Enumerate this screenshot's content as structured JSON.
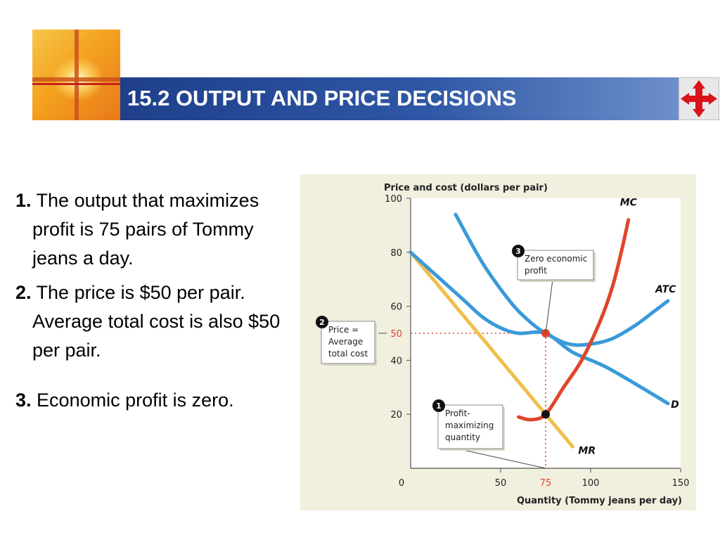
{
  "slide": {
    "title": "15.2 OUTPUT AND PRICE DECISIONS",
    "points": [
      {
        "num": "1.",
        "text": "The output that maximizes profit is 75 pairs of Tommy jeans a day."
      },
      {
        "num": "2.",
        "text": "The price is $50 per pair. Average total cost is also $50 per pair."
      },
      {
        "num": "3.",
        "text": " Economic profit is zero."
      }
    ]
  },
  "chart_data": {
    "type": "line",
    "ylabel": "Price and cost (dollars per pair)",
    "xlabel": "Quantity (Tommy jeans per day)",
    "xlim": [
      0,
      150
    ],
    "ylim": [
      0,
      100
    ],
    "x_ticks": [
      {
        "value": 0,
        "label": "0"
      },
      {
        "value": 50,
        "label": "50"
      },
      {
        "value": 75,
        "label": "75",
        "highlight": true
      },
      {
        "value": 100,
        "label": "100"
      },
      {
        "value": 150,
        "label": "150"
      }
    ],
    "y_ticks": [
      {
        "value": 20,
        "label": "20"
      },
      {
        "value": 40,
        "label": "40"
      },
      {
        "value": 50,
        "label": "50",
        "highlight": true
      },
      {
        "value": 60,
        "label": "60"
      },
      {
        "value": 80,
        "label": "80"
      },
      {
        "value": 100,
        "label": "100"
      }
    ],
    "series": [
      {
        "name": "D",
        "color": "#3a9ad9",
        "points": [
          [
            0,
            80
          ],
          [
            10,
            74
          ],
          [
            20,
            68
          ],
          [
            30,
            62
          ],
          [
            40,
            56
          ],
          [
            50,
            52
          ],
          [
            60,
            50
          ],
          [
            75,
            50
          ],
          [
            90,
            43
          ],
          [
            110,
            37
          ],
          [
            143,
            24
          ]
        ]
      },
      {
        "name": "ATC",
        "color": "#3a9ad9",
        "points": [
          [
            25,
            94
          ],
          [
            40,
            76
          ],
          [
            55,
            62
          ],
          [
            65,
            55
          ],
          [
            75,
            50
          ],
          [
            88,
            46
          ],
          [
            100,
            46
          ],
          [
            112,
            48
          ],
          [
            125,
            53
          ],
          [
            135,
            58
          ],
          [
            143,
            62
          ]
        ]
      },
      {
        "name": "MR",
        "color": "#f0be4c",
        "points": [
          [
            0,
            80
          ],
          [
            75,
            20
          ],
          [
            90,
            8
          ]
        ]
      },
      {
        "name": "MC",
        "color": "#e0452a",
        "points": [
          [
            60,
            19
          ],
          [
            67,
            18
          ],
          [
            75,
            20
          ],
          [
            85,
            30
          ],
          [
            95,
            40
          ],
          [
            105,
            54
          ],
          [
            112,
            67
          ],
          [
            117,
            80
          ],
          [
            121,
            92
          ]
        ]
      }
    ],
    "points": [
      {
        "x": 75,
        "y": 50,
        "color": "#e0452a"
      },
      {
        "x": 75,
        "y": 20,
        "color": "#111111"
      }
    ],
    "reference_lines": {
      "x": 75,
      "y": 50,
      "color": "#e0452a",
      "style": "dotted"
    },
    "callouts": [
      {
        "num": "3",
        "lines": [
          "Zero economic",
          "profit"
        ]
      },
      {
        "num": "2",
        "lines": [
          "Price =",
          "Average",
          "total cost"
        ]
      },
      {
        "num": "1",
        "lines": [
          "Profit-",
          "maximizing",
          "quantity"
        ]
      }
    ]
  }
}
